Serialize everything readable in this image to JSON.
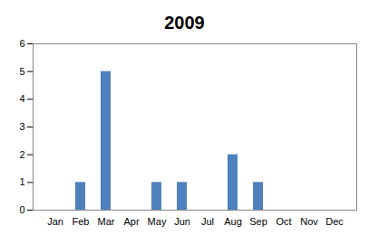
{
  "chart_data": {
    "type": "bar",
    "title": "2009",
    "categories": [
      "Jan",
      "Feb",
      "Mar",
      "Apr",
      "May",
      "Jun",
      "Jul",
      "Aug",
      "Sep",
      "Oct",
      "Nov",
      "Dec"
    ],
    "values": [
      0,
      1,
      5,
      0,
      1,
      1,
      0,
      2,
      1,
      0,
      0,
      0
    ],
    "color": "#4f81bd",
    "ylim": [
      0,
      6
    ],
    "yticks": [
      0,
      1,
      2,
      3,
      4,
      5,
      6
    ],
    "grid": false
  }
}
